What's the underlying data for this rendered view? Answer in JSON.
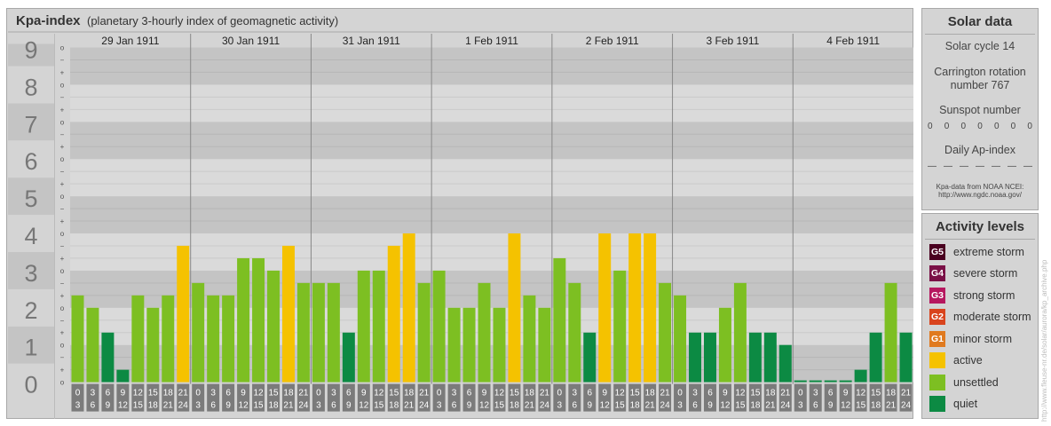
{
  "header": {
    "title": "Kpa-index",
    "subtitle": "(planetary 3-hourly index of geomagnetic activity)"
  },
  "chart_data": {
    "type": "bar",
    "title": "Kpa-index",
    "subtitle": "(planetary 3-hourly index of geomagnetic activity)",
    "ylim": [
      0,
      9
    ],
    "y_ticks": [
      "0",
      "1",
      "2",
      "3",
      "4",
      "5",
      "6",
      "7",
      "8",
      "9"
    ],
    "sub_ticks": [
      "o",
      "+",
      "−"
    ],
    "days": [
      "29 Jan 1911",
      "30 Jan 1911",
      "31 Jan 1911",
      "1 Feb 1911",
      "2 Feb 1911",
      "3 Feb 1911",
      "4 Feb 1911"
    ],
    "interval_top": [
      "0",
      "3",
      "6",
      "9",
      "12",
      "15",
      "18",
      "21"
    ],
    "interval_bottom": [
      "3",
      "6",
      "9",
      "12",
      "15",
      "18",
      "21",
      "24"
    ],
    "values": [
      2.333,
      2.0,
      1.333,
      0.333,
      2.333,
      2.0,
      2.333,
      3.667,
      2.667,
      2.333,
      2.333,
      3.333,
      3.333,
      3.0,
      3.667,
      2.667,
      2.667,
      2.667,
      1.333,
      3.0,
      3.0,
      3.667,
      4.0,
      2.667,
      3.0,
      2.0,
      2.0,
      2.667,
      2.0,
      4.0,
      2.333,
      2.0,
      3.333,
      2.667,
      1.333,
      4.0,
      3.0,
      4.0,
      4.0,
      2.667,
      2.333,
      1.333,
      1.333,
      2.0,
      2.667,
      1.333,
      1.333,
      1.0,
      0.0,
      0.0,
      0.0,
      0.0,
      0.333,
      1.333,
      2.667,
      1.333
    ],
    "grid": true,
    "legend_position": "right"
  },
  "colors": {
    "extreme": "#4a0020",
    "severe": "#7a1046",
    "strong": "#b6175f",
    "moderate": "#d9441d",
    "minor": "#e07a1f",
    "active": "#f5c200",
    "unsettled": "#7dbf22",
    "quiet": "#0c8a43",
    "panel": "#d4d4d4"
  },
  "solar": {
    "title": "Solar data",
    "cycle": "Solar cycle 14",
    "carrington_line1": "Carrington rotation",
    "carrington_line2": "number 767",
    "sunspot_title": "Sunspot number",
    "sunspot_values": [
      "0",
      "0",
      "0",
      "0",
      "0",
      "0",
      "0"
    ],
    "ap_title": "Daily Ap-index",
    "ap_values": [
      "—",
      "—",
      "—",
      "—",
      "—",
      "—",
      "—"
    ],
    "source_line1": "Kpa-data from NOAA NCEI:",
    "source_line2": "http://www.ngdc.noaa.gov/"
  },
  "activity": {
    "title": "Activity levels",
    "items": [
      {
        "badge": "G5",
        "label": "extreme storm",
        "color": "#4a0020"
      },
      {
        "badge": "G4",
        "label": "severe storm",
        "color": "#7a1046"
      },
      {
        "badge": "G3",
        "label": "strong storm",
        "color": "#b6175f"
      },
      {
        "badge": "G2",
        "label": "moderate storm",
        "color": "#d9441d"
      },
      {
        "badge": "G1",
        "label": "minor storm",
        "color": "#e07a1f"
      },
      {
        "badge": "",
        "label": "active",
        "color": "#f5c200"
      },
      {
        "badge": "",
        "label": "unsettled",
        "color": "#7dbf22"
      },
      {
        "badge": "",
        "label": "quiet",
        "color": "#0c8a43"
      }
    ]
  },
  "watermark": "http://www.fleuse-nr.de/solar/aurora/kp_archive.php"
}
